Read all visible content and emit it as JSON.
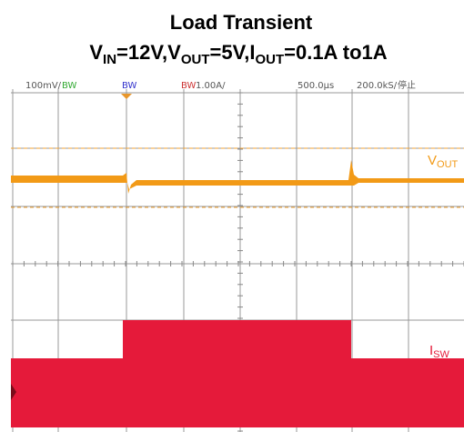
{
  "header": {
    "title": "Load Transient",
    "subtitle": [
      {
        "text": "V"
      },
      {
        "sub": "IN"
      },
      {
        "text": "=12V,V"
      },
      {
        "sub": "OUT"
      },
      {
        "text": "=5V,I"
      },
      {
        "sub": "OUT"
      },
      {
        "text": "=0.1A to1A"
      }
    ]
  },
  "scope": {
    "status_bar": [
      "100mV/",
      "BW",
      "BW",
      "BW",
      "1.00A/",
      "500.0μs",
      "200.0kS/",
      "停止"
    ],
    "traces": [
      {
        "name": "V",
        "sub": "OUT"
      },
      {
        "name": "I",
        "sub": "SW"
      }
    ]
  }
}
